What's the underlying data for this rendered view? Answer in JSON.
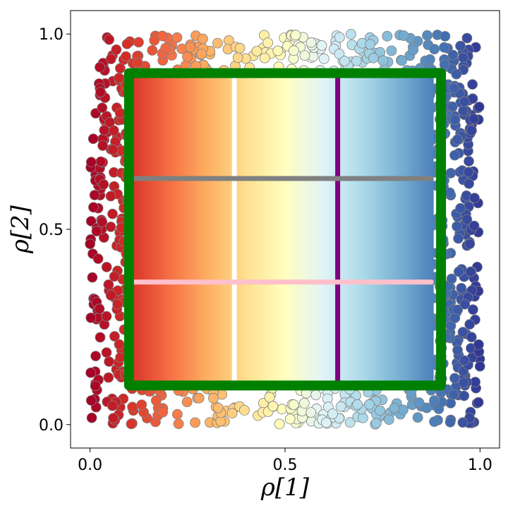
{
  "chart_data": {
    "type": "scatter",
    "title": "",
    "xlabel": "ρ[1]",
    "ylabel": "ρ[2]",
    "xlim": [
      -0.05,
      1.05
    ],
    "ylim": [
      -0.06,
      1.06
    ],
    "xticks": [
      0.0,
      0.5,
      1.0
    ],
    "xtick_labels": [
      "0.0",
      "0.5",
      "1.0"
    ],
    "yticks": [
      0.0,
      0.5,
      1.0
    ],
    "ytick_labels": [
      "0.0",
      "0.5",
      "1.0"
    ],
    "grid": false,
    "legend": "none",
    "colormap": "RdYlBu",
    "colormap_stops": [
      "#a50026",
      "#d73027",
      "#f46d43",
      "#fdae61",
      "#fee090",
      "#ffffbf",
      "#e0f3f8",
      "#abd9e9",
      "#74add1",
      "#4575b4",
      "#313695"
    ],
    "scatter_cloud": {
      "x_range": [
        0.0,
        1.0
      ],
      "y_range": [
        0.0,
        1.0
      ],
      "point_count": 1800,
      "color_by": "x",
      "edge_color": "#808080"
    },
    "inner_filled_square": {
      "x_range": [
        0.11,
        0.88
      ],
      "y_range": [
        0.1,
        0.89
      ],
      "color_by": "x"
    },
    "boundary_square": {
      "color": "#008000",
      "corners": [
        [
          0.1,
          0.1
        ],
        [
          0.9,
          0.1
        ],
        [
          0.9,
          0.9
        ],
        [
          0.1,
          0.9
        ]
      ]
    },
    "lines": [
      {
        "orientation": "vertical",
        "x": 0.37,
        "y_range": [
          0.1,
          0.89
        ],
        "color": "#ffffff"
      },
      {
        "orientation": "vertical",
        "x": 0.635,
        "y_range": [
          0.1,
          0.89
        ],
        "color": "#800080"
      },
      {
        "orientation": "horizontal",
        "y": 0.63,
        "x_range": [
          0.11,
          0.875
        ],
        "color": "#808080"
      },
      {
        "orientation": "horizontal",
        "y": 0.365,
        "x_range": [
          0.11,
          0.875
        ],
        "color": "#ffc0cb"
      }
    ]
  }
}
